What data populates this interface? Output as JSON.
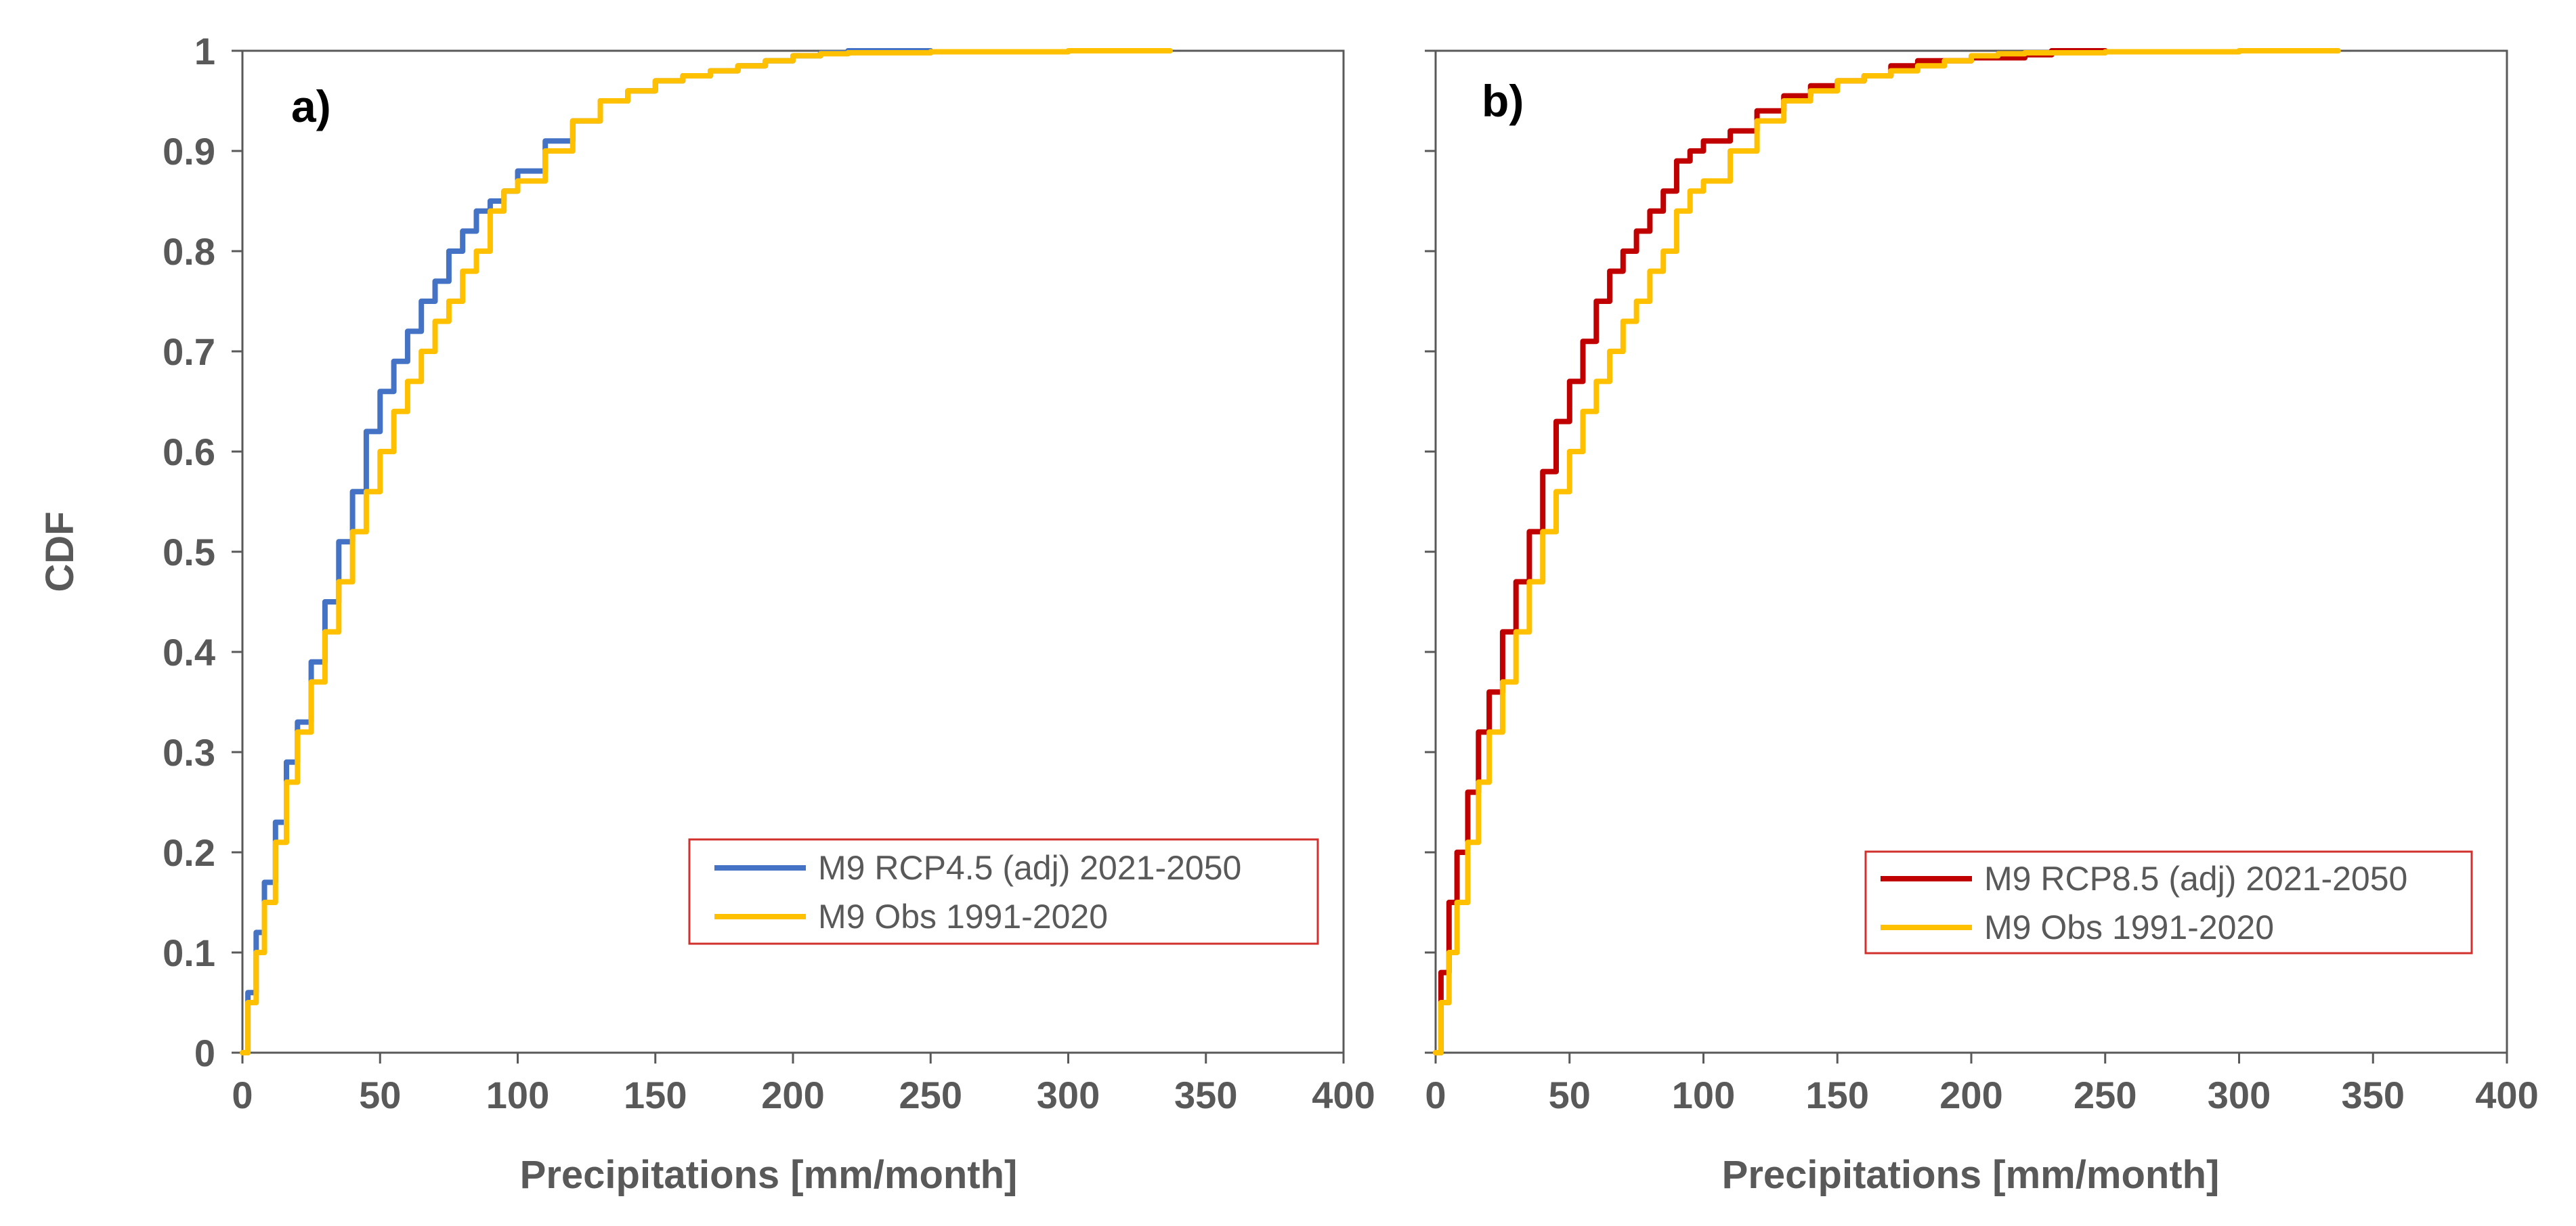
{
  "chart_data": [
    {
      "type": "line",
      "panel_label": "a)",
      "xlabel": "Precipitations [mm/month]",
      "ylabel": "CDF",
      "xlim": [
        0,
        400
      ],
      "ylim": [
        0,
        1
      ],
      "xticks": [
        "0",
        "50",
        "100",
        "150",
        "200",
        "250",
        "300",
        "350",
        "400"
      ],
      "yticks": [
        "0",
        "0.1",
        "0.2",
        "0.3",
        "0.4",
        "0.5",
        "0.6",
        "0.7",
        "0.8",
        "0.9",
        "1"
      ],
      "legend_position": "lower-right",
      "series": [
        {
          "name": "M9 RCP4.5 (adj) 2021-2050",
          "color": "#4472c4",
          "x": [
            0,
            2,
            5,
            8,
            12,
            16,
            20,
            25,
            30,
            35,
            40,
            45,
            50,
            55,
            60,
            65,
            70,
            75,
            80,
            85,
            90,
            95,
            100,
            110,
            120,
            130,
            140,
            150,
            160,
            170,
            180,
            190,
            200,
            210,
            220,
            250
          ],
          "y": [
            0,
            0.06,
            0.12,
            0.17,
            0.23,
            0.29,
            0.33,
            0.39,
            0.45,
            0.51,
            0.56,
            0.62,
            0.66,
            0.69,
            0.72,
            0.75,
            0.77,
            0.8,
            0.82,
            0.84,
            0.85,
            0.86,
            0.88,
            0.91,
            0.93,
            0.95,
            0.96,
            0.97,
            0.975,
            0.98,
            0.985,
            0.99,
            0.995,
            0.998,
            1.0,
            1.0
          ]
        },
        {
          "name": "M9 Obs 1991-2020",
          "color": "#ffc000",
          "x": [
            0,
            2,
            5,
            8,
            12,
            16,
            20,
            25,
            30,
            35,
            40,
            45,
            50,
            55,
            60,
            65,
            70,
            75,
            80,
            85,
            90,
            95,
            100,
            110,
            120,
            130,
            140,
            150,
            160,
            170,
            180,
            190,
            200,
            210,
            220,
            250,
            300,
            337
          ],
          "y": [
            0,
            0.05,
            0.1,
            0.15,
            0.21,
            0.27,
            0.32,
            0.37,
            0.42,
            0.47,
            0.52,
            0.56,
            0.6,
            0.64,
            0.67,
            0.7,
            0.73,
            0.75,
            0.78,
            0.8,
            0.84,
            0.86,
            0.87,
            0.9,
            0.93,
            0.95,
            0.96,
            0.97,
            0.975,
            0.98,
            0.985,
            0.99,
            0.995,
            0.997,
            0.998,
            0.999,
            1.0,
            1.0
          ]
        }
      ]
    },
    {
      "type": "line",
      "panel_label": "b)",
      "xlabel": "Precipitations [mm/month]",
      "ylabel": "",
      "xlim": [
        0,
        400
      ],
      "ylim": [
        0,
        1
      ],
      "xticks": [
        "0",
        "50",
        "100",
        "150",
        "200",
        "250",
        "300",
        "350",
        "400"
      ],
      "yticks": [],
      "legend_position": "lower-right",
      "series": [
        {
          "name": "M9 RCP8.5 (adj) 2021-2050",
          "color": "#c00000",
          "x": [
            0,
            2,
            5,
            8,
            12,
            16,
            20,
            25,
            30,
            35,
            40,
            45,
            50,
            55,
            60,
            65,
            70,
            75,
            80,
            85,
            90,
            95,
            100,
            110,
            120,
            130,
            140,
            150,
            160,
            170,
            180,
            190,
            200,
            210,
            220,
            230,
            250
          ],
          "y": [
            0,
            0.08,
            0.15,
            0.2,
            0.26,
            0.32,
            0.36,
            0.42,
            0.47,
            0.52,
            0.58,
            0.63,
            0.67,
            0.71,
            0.75,
            0.78,
            0.8,
            0.82,
            0.84,
            0.86,
            0.89,
            0.9,
            0.91,
            0.92,
            0.94,
            0.955,
            0.965,
            0.97,
            0.975,
            0.985,
            0.99,
            0.99,
            0.993,
            0.993,
            0.996,
            1.0,
            1.0
          ]
        },
        {
          "name": "M9 Obs 1991-2020",
          "color": "#ffc000",
          "x": [
            0,
            2,
            5,
            8,
            12,
            16,
            20,
            25,
            30,
            35,
            40,
            45,
            50,
            55,
            60,
            65,
            70,
            75,
            80,
            85,
            90,
            95,
            100,
            110,
            120,
            130,
            140,
            150,
            160,
            170,
            180,
            190,
            200,
            210,
            220,
            250,
            300,
            337
          ],
          "y": [
            0,
            0.05,
            0.1,
            0.15,
            0.21,
            0.27,
            0.32,
            0.37,
            0.42,
            0.47,
            0.52,
            0.56,
            0.6,
            0.64,
            0.67,
            0.7,
            0.73,
            0.75,
            0.78,
            0.8,
            0.84,
            0.86,
            0.87,
            0.9,
            0.93,
            0.95,
            0.96,
            0.97,
            0.975,
            0.98,
            0.985,
            0.99,
            0.995,
            0.997,
            0.998,
            0.999,
            1.0,
            1.0
          ]
        }
      ]
    }
  ]
}
